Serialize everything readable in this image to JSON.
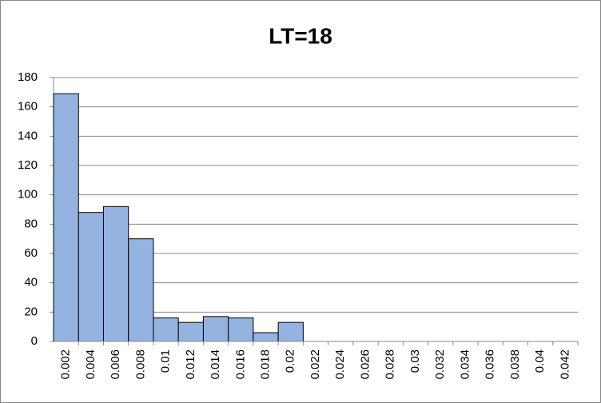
{
  "chart_data": {
    "type": "bar",
    "title": "LT=18",
    "categories": [
      "0.002",
      "0.004",
      "0.006",
      "0.008",
      "0.01",
      "0.012",
      "0.014",
      "0.016",
      "0.018",
      "0.02",
      "0.022",
      "0.024",
      "0.026",
      "0.028",
      "0.03",
      "0.032",
      "0.034",
      "0.036",
      "0.038",
      "0.04",
      "0.042"
    ],
    "values": [
      169,
      88,
      92,
      70,
      16,
      13,
      17,
      16,
      6,
      13,
      0,
      0,
      0,
      0,
      0,
      0,
      0,
      0,
      0,
      0,
      0
    ],
    "color": "#95b3e0",
    "ylim": [
      0,
      180
    ],
    "yticks": [
      0,
      20,
      40,
      60,
      80,
      100,
      120,
      140,
      160,
      180
    ],
    "grid": true
  }
}
